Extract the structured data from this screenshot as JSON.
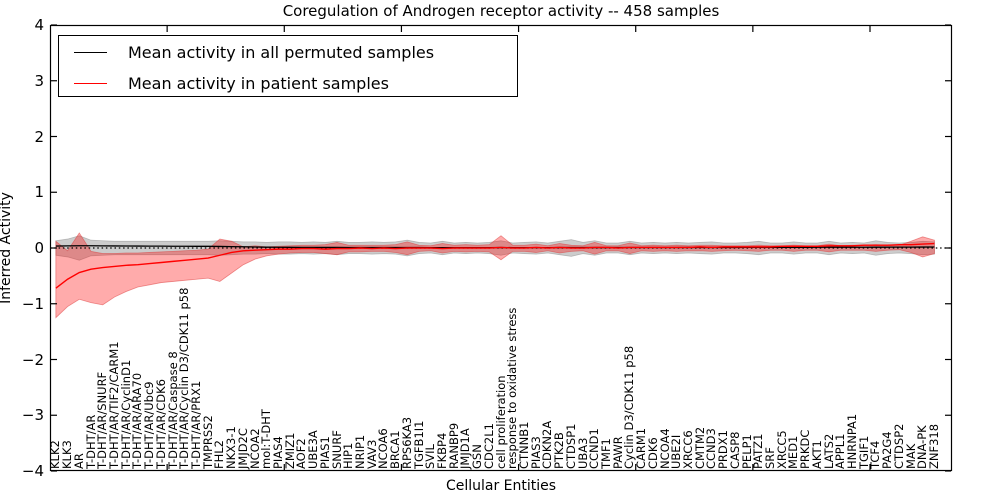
{
  "chart_data": {
    "type": "line",
    "title": "Coregulation of Androgen receptor activity -- 458 samples",
    "xlabel": "Cellular Entities",
    "ylabel": "Inferred Activity",
    "ylim": [
      -4,
      4
    ],
    "yticks": [
      4,
      3,
      2,
      1,
      0,
      -1,
      -2,
      -3,
      -4
    ],
    "x_major_ticks": [
      10,
      20,
      30,
      40,
      50,
      60,
      70
    ],
    "grid": false,
    "legend_position": "upper left",
    "zero_line": {
      "value": 0,
      "style": "dotted",
      "color": "#000000"
    },
    "categories": [
      "KLK2",
      "KLK3",
      "AR",
      "T-DHT/AR",
      "T-DHT/AR/SNURF",
      "T-DHT/AR/TIF2/CARM1",
      "T-DHT/AR/CyclinD1",
      "T-DHT/AR/ARA70",
      "T-DHT/AR/Ubc9",
      "T-DHT/AR/CDK6",
      "T-DHT/AR/Caspase 8",
      "T-DHT/AR/Cyclin D3/CDK11 p58",
      "T-DHT/AR/PRX1",
      "TMPRSS2",
      "FHL2",
      "NKX3-1",
      "JMJD2C",
      "NCOA2",
      "mol:T-DHT",
      "PIAS4",
      "ZMIZ1",
      "AOF2",
      "UBE3A",
      "PIAS1",
      "SNURF",
      "HIP1",
      "NRIP1",
      "VAV3",
      "NCOA6",
      "BRCA1",
      "RPS6KA3",
      "TGFB1I1",
      "SVIL",
      "FKBP4",
      "RANBP9",
      "JMJD1A",
      "GSN",
      "CDC2L1",
      "cell proliferation",
      "response to oxidative stress",
      "CTNNB1",
      "PIAS3",
      "CDKN2A",
      "PTK2B",
      "CTDSP1",
      "UBA3",
      "CCND1",
      "TMF1",
      "PAWR",
      "Cyclin D3/CDK11 p58",
      "CARM1",
      "CDK6",
      "NCOA4",
      "UBE2I",
      "XRCC6",
      "CMTM2",
      "CCND3",
      "PRDX1",
      "CASP8",
      "PELP1",
      "PATZ1",
      "SRF",
      "XRCC5",
      "MED1",
      "PRKDC",
      "AKT1",
      "LATS2",
      "APPL1",
      "HNRNPA1",
      "TGIF1",
      "TCF4",
      "PA2G4",
      "CTDSP2",
      "MAK",
      "DNA-PK",
      "ZNF318"
    ],
    "series": [
      {
        "name": "Mean activity in all permuted samples",
        "color": "#000000",
        "values": [
          0.035,
          0.038,
          0.04,
          0.04,
          0.038,
          0.037,
          0.036,
          0.035,
          0.034,
          0.033,
          0.032,
          0.031,
          0.03,
          0.03,
          0.028,
          0.025,
          0.022,
          0.018,
          0.015,
          0.013,
          0.012,
          0.011,
          0.01,
          0.01,
          0.01,
          0.009,
          0.009,
          0.008,
          0.008,
          0.008,
          0.008,
          0.008,
          0.007,
          0.007,
          0.007,
          0.007,
          0.007,
          0.007,
          0.008,
          0.007,
          0.007,
          0.007,
          0.007,
          0.008,
          0.008,
          0.008,
          0.008,
          0.008,
          0.008,
          0.009,
          0.009,
          0.009,
          0.009,
          0.009,
          0.01,
          0.01,
          0.01,
          0.01,
          0.01,
          0.011,
          0.011,
          0.011,
          0.012,
          0.012,
          0.012,
          0.013,
          0.013,
          0.013,
          0.014,
          0.014,
          0.015,
          0.015,
          0.016,
          0.016,
          0.017,
          0.018
        ],
        "band_upper": [
          0.13,
          0.16,
          0.22,
          0.14,
          0.13,
          0.12,
          0.12,
          0.12,
          0.12,
          0.12,
          0.12,
          0.12,
          0.12,
          0.12,
          0.13,
          0.12,
          0.11,
          0.11,
          0.1,
          0.11,
          0.11,
          0.1,
          0.11,
          0.1,
          0.12,
          0.1,
          0.1,
          0.11,
          0.1,
          0.11,
          0.14,
          0.1,
          0.09,
          0.12,
          0.09,
          0.1,
          0.09,
          0.1,
          0.13,
          0.09,
          0.1,
          0.11,
          0.09,
          0.12,
          0.15,
          0.1,
          0.13,
          0.09,
          0.09,
          0.12,
          0.09,
          0.1,
          0.09,
          0.1,
          0.09,
          0.1,
          0.11,
          0.09,
          0.09,
          0.1,
          0.12,
          0.09,
          0.09,
          0.11,
          0.09,
          0.09,
          0.12,
          0.09,
          0.1,
          0.09,
          0.13,
          0.1,
          0.09,
          0.1,
          0.12,
          0.11
        ],
        "band_lower": [
          -0.13,
          -0.16,
          -0.22,
          -0.14,
          -0.13,
          -0.12,
          -0.12,
          -0.12,
          -0.12,
          -0.12,
          -0.12,
          -0.12,
          -0.12,
          -0.12,
          -0.13,
          -0.12,
          -0.11,
          -0.11,
          -0.1,
          -0.11,
          -0.11,
          -0.1,
          -0.11,
          -0.1,
          -0.12,
          -0.1,
          -0.1,
          -0.11,
          -0.1,
          -0.11,
          -0.14,
          -0.1,
          -0.09,
          -0.12,
          -0.09,
          -0.1,
          -0.09,
          -0.1,
          -0.13,
          -0.09,
          -0.1,
          -0.11,
          -0.09,
          -0.12,
          -0.15,
          -0.1,
          -0.13,
          -0.09,
          -0.09,
          -0.12,
          -0.09,
          -0.1,
          -0.09,
          -0.1,
          -0.09,
          -0.1,
          -0.11,
          -0.09,
          -0.09,
          -0.1,
          -0.12,
          -0.09,
          -0.09,
          -0.11,
          -0.09,
          -0.09,
          -0.12,
          -0.09,
          -0.1,
          -0.09,
          -0.13,
          -0.1,
          -0.09,
          -0.1,
          -0.12,
          -0.11
        ],
        "band_fill": "rgba(128,128,128,0.40)"
      },
      {
        "name": "Mean activity in patient samples",
        "color": "#ff0000",
        "values": [
          -0.72,
          -0.56,
          -0.44,
          -0.38,
          -0.35,
          -0.33,
          -0.31,
          -0.3,
          -0.28,
          -0.26,
          -0.24,
          -0.22,
          -0.2,
          -0.18,
          -0.13,
          -0.08,
          -0.05,
          -0.04,
          -0.03,
          -0.02,
          -0.02,
          -0.01,
          -0.01,
          -0.02,
          -0.01,
          -0.01,
          0.0,
          -0.01,
          0.0,
          -0.01,
          0.0,
          0.0,
          0.0,
          -0.01,
          0.0,
          0.0,
          0.0,
          0.0,
          0.01,
          0.0,
          0.0,
          0.01,
          0.0,
          0.01,
          0.0,
          0.0,
          0.01,
          0.01,
          0.0,
          0.01,
          0.01,
          0.01,
          0.01,
          0.01,
          0.01,
          0.02,
          0.01,
          0.02,
          0.02,
          0.02,
          0.02,
          0.02,
          0.03,
          0.03,
          0.03,
          0.03,
          0.04,
          0.04,
          0.04,
          0.05,
          0.05,
          0.05,
          0.06,
          0.06,
          0.07,
          0.08
        ],
        "band_upper": [
          0.12,
          -0.05,
          0.27,
          -0.06,
          -0.1,
          -0.1,
          -0.09,
          -0.09,
          -0.08,
          -0.07,
          -0.06,
          -0.05,
          -0.04,
          -0.02,
          0.16,
          0.12,
          0.02,
          0.04,
          0.02,
          0.03,
          0.04,
          0.05,
          0.05,
          0.06,
          0.1,
          0.05,
          0.05,
          0.05,
          0.05,
          0.06,
          0.11,
          0.05,
          0.04,
          0.08,
          0.05,
          0.06,
          0.05,
          0.06,
          0.22,
          0.05,
          0.05,
          0.07,
          0.04,
          0.08,
          0.05,
          0.04,
          0.1,
          0.04,
          0.04,
          0.09,
          0.04,
          0.05,
          0.04,
          0.05,
          0.04,
          0.05,
          0.05,
          0.04,
          0.04,
          0.04,
          0.05,
          0.04,
          0.04,
          0.05,
          0.04,
          0.04,
          0.07,
          0.04,
          0.05,
          0.05,
          0.06,
          0.05,
          0.05,
          0.12,
          0.2,
          0.14
        ],
        "band_lower": [
          -1.25,
          -1.05,
          -0.92,
          -0.98,
          -1.02,
          -0.88,
          -0.78,
          -0.7,
          -0.66,
          -0.62,
          -0.6,
          -0.58,
          -0.56,
          -0.54,
          -0.6,
          -0.45,
          -0.3,
          -0.2,
          -0.14,
          -0.11,
          -0.09,
          -0.08,
          -0.08,
          -0.1,
          -0.12,
          -0.07,
          -0.07,
          -0.06,
          -0.06,
          -0.08,
          -0.12,
          -0.06,
          -0.05,
          -0.09,
          -0.06,
          -0.07,
          -0.06,
          -0.07,
          -0.21,
          -0.06,
          -0.06,
          -0.08,
          -0.05,
          -0.09,
          -0.06,
          -0.05,
          -0.11,
          -0.05,
          -0.05,
          -0.1,
          -0.05,
          -0.06,
          -0.05,
          -0.06,
          -0.05,
          -0.05,
          -0.06,
          -0.05,
          -0.04,
          -0.05,
          -0.06,
          -0.04,
          -0.04,
          -0.06,
          -0.04,
          -0.04,
          -0.07,
          -0.04,
          -0.04,
          -0.04,
          -0.06,
          -0.04,
          -0.03,
          -0.08,
          -0.16,
          -0.1
        ],
        "band_fill": "rgba(255,0,0,0.33)"
      }
    ]
  }
}
